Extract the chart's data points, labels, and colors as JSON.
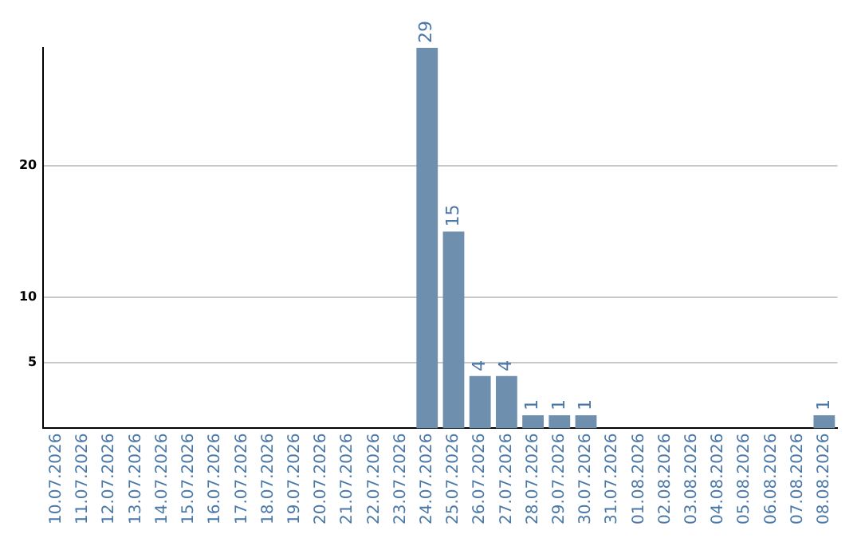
{
  "chart_data": {
    "type": "bar",
    "categories": [
      "10.07.2026",
      "11.07.2026",
      "12.07.2026",
      "13.07.2026",
      "14.07.2026",
      "15.07.2026",
      "16.07.2026",
      "17.07.2026",
      "18.07.2026",
      "19.07.2026",
      "20.07.2026",
      "21.07.2026",
      "22.07.2026",
      "23.07.2026",
      "24.07.2026",
      "25.07.2026",
      "26.07.2026",
      "27.07.2026",
      "28.07.2026",
      "29.07.2026",
      "30.07.2026",
      "31.07.2026",
      "01.08.2026",
      "02.08.2026",
      "03.08.2026",
      "04.08.2026",
      "05.08.2026",
      "06.08.2026",
      "07.08.2026",
      "08.08.2026"
    ],
    "values": [
      0,
      0,
      0,
      0,
      0,
      0,
      0,
      0,
      0,
      0,
      0,
      0,
      0,
      0,
      29,
      15,
      4,
      4,
      1,
      1,
      1,
      0,
      0,
      0,
      0,
      0,
      0,
      0,
      0,
      1
    ],
    "value_labels": [
      null,
      null,
      null,
      null,
      null,
      null,
      null,
      null,
      null,
      null,
      null,
      null,
      null,
      null,
      "29",
      "15",
      "4",
      "4",
      "1",
      "1",
      "1",
      null,
      null,
      null,
      null,
      null,
      null,
      null,
      null,
      "1"
    ],
    "color": "#6f8fae",
    "ylim": [
      0,
      29
    ],
    "yticks": [
      5,
      10,
      20
    ],
    "grid": "y"
  }
}
